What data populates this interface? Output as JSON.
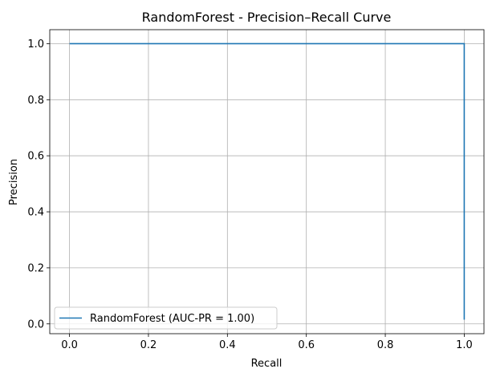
{
  "chart_data": {
    "type": "line",
    "title": "RandomForest - Precision–Recall Curve",
    "xlabel": "Recall",
    "ylabel": "Precision",
    "xlim": [
      -0.05,
      1.05
    ],
    "ylim": [
      -0.035,
      1.05
    ],
    "xticks": [
      0.0,
      0.2,
      0.4,
      0.6,
      0.8,
      1.0
    ],
    "yticks": [
      0.0,
      0.2,
      0.4,
      0.6,
      0.8,
      1.0
    ],
    "xtick_labels": [
      "0.0",
      "0.2",
      "0.4",
      "0.6",
      "0.8",
      "1.0"
    ],
    "ytick_labels": [
      "0.0",
      "0.2",
      "0.4",
      "0.6",
      "0.8",
      "1.0"
    ],
    "grid": true,
    "legend_position": "lower-left",
    "series": [
      {
        "name": "RandomForest (AUC-PR = 1.00)",
        "color": "#1f77b4",
        "x": [
          0.0,
          1.0,
          1.0
        ],
        "y": [
          1.0,
          1.0,
          0.015
        ]
      }
    ]
  }
}
